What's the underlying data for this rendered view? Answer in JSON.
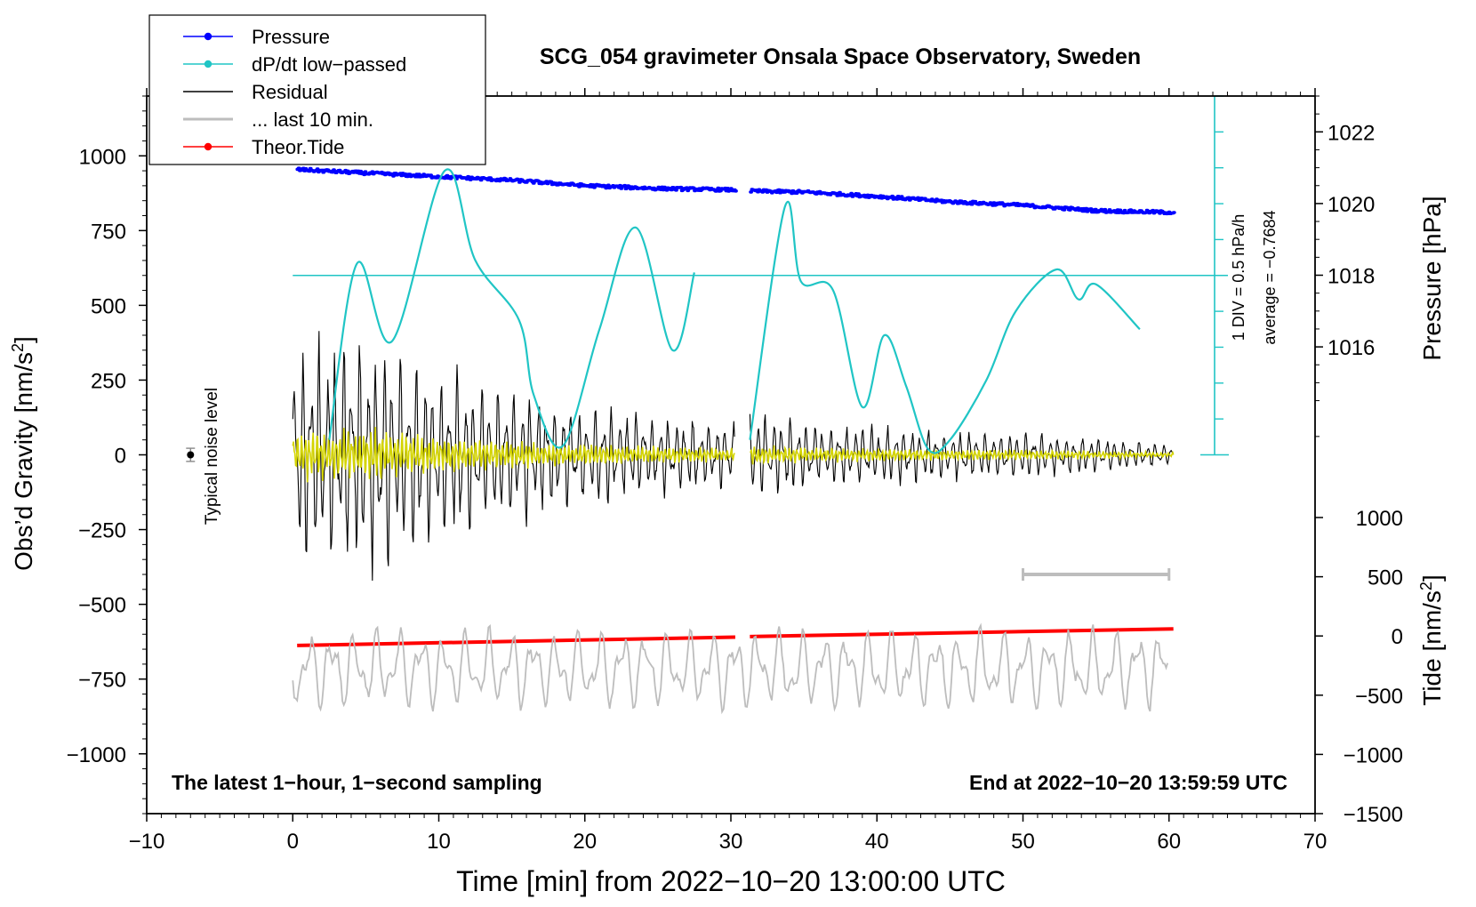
{
  "chart_data": {
    "type": "line",
    "title": "SCG_054 gravimeter Onsala Space Observatory, Sweden",
    "xlabel": "Time [min] from 2022−10−20 13:00:00 UTC",
    "xlim": [
      -10,
      70
    ],
    "x_ticks": [
      "−10",
      "0",
      "10",
      "20",
      "30",
      "40",
      "50",
      "60",
      "70"
    ],
    "y_left": {
      "label": "Obs’d Gravity [nm/s",
      "label_sup": "2",
      "label_end": "]",
      "range": [
        -1200,
        1200
      ],
      "ticks": [
        1000,
        750,
        500,
        250,
        0,
        -250,
        -500,
        -750,
        -1000
      ],
      "tick_labels": [
        "1000",
        "750",
        "500",
        "250",
        "0",
        "−250",
        "−500",
        "−750",
        "−1000"
      ]
    },
    "y_right_pressure": {
      "label": "Pressure [hPa]",
      "range": [
        1013.0,
        1023.0
      ],
      "ticks": [
        1022,
        1020,
        1018,
        1016
      ],
      "tick_labels": [
        "1022",
        "1020",
        "1018",
        "1016"
      ]
    },
    "y_right_tide": {
      "label": "Tide [nm/s",
      "label_sup": "2",
      "label_end": "]",
      "range": [
        -1500,
        1000
      ],
      "ticks": [
        1000,
        500,
        0,
        -500,
        -1000,
        -1500
      ],
      "tick_labels": [
        "1000",
        "500",
        "0",
        "−500",
        "−1000",
        "−1500"
      ]
    },
    "legend": {
      "position": "top-left",
      "entries": [
        {
          "label": "Pressure",
          "color": "#0000ff",
          "marker": true
        },
        {
          "label": "dP/dt low−passed",
          "color": "#20c5c5",
          "marker": true
        },
        {
          "label": "Residual",
          "color": "#000000",
          "marker": false
        },
        {
          "label": "... last 10 min.",
          "color": "#bdbdbd",
          "marker": false
        },
        {
          "label": "Theor.Tide",
          "color": "#ff0000",
          "marker": true
        }
      ]
    },
    "colors": {
      "pressure": "#0000ff",
      "dpdt": "#20c5c5",
      "residual": "#000000",
      "residual_smooth": "#d4d400",
      "last10": "#bdbdbd",
      "tide": "#ff0000"
    },
    "gap_minutes": [
      30.3,
      31.3
    ],
    "series": [
      {
        "name": "Pressure",
        "unit": "hPa",
        "x": [
          0.3,
          5,
          10,
          15,
          20,
          25,
          30.3,
          31.3,
          35,
          40,
          45,
          50,
          55,
          60.3
        ],
        "values": [
          1020.95,
          1020.85,
          1020.75,
          1020.65,
          1020.5,
          1020.42,
          1020.38,
          1020.35,
          1020.32,
          1020.2,
          1020.05,
          1019.95,
          1019.8,
          1019.75
        ]
      },
      {
        "name": "dP/dt low-passed",
        "unit": "DIV (1 DIV = 0.5 hPa/h), baseline 0 nm/s2, DIV = 100 nm/s2",
        "x": [
          2.5,
          4.4,
          6.8,
          10.4,
          12.5,
          15.5,
          16.5,
          18.5,
          21,
          23.5,
          26,
          27.5,
          31.3,
          33.7,
          34.8,
          37,
          39,
          40.5,
          42,
          43.5,
          45,
          47.5,
          49.5,
          52.3,
          53.8,
          55,
          58
        ],
        "values": [
          0.5,
          6.4,
          3.8,
          9.5,
          6.5,
          4.5,
          2,
          0.3,
          4.2,
          7.6,
          3.5,
          6.1,
          0.5,
          8.3,
          5.8,
          5.5,
          1.6,
          4,
          2.3,
          0.2,
          0.5,
          2.5,
          4.8,
          6.2,
          5.2,
          5.7,
          4.2
        ]
      },
      {
        "name": "Residual",
        "unit": "nm/s2",
        "envelope_x": [
          0,
          5,
          10,
          15,
          20,
          25,
          30.3,
          31.3,
          35,
          40,
          45,
          50,
          55,
          60.3
        ],
        "envelope_amplitude": [
          420,
          480,
          320,
          260,
          200,
          160,
          120,
          180,
          130,
          120,
          100,
          90,
          70,
          40
        ]
      },
      {
        "name": "Theor.Tide",
        "unit": "nm/s2",
        "x": [
          0.3,
          30.3,
          31.3,
          60.3
        ],
        "values": [
          -80,
          -10,
          -5,
          60
        ]
      }
    ],
    "noise_marker": {
      "x": -7,
      "y": 0,
      "label": "Typical noise level"
    },
    "last_10_min_bar": {
      "x_start": 50,
      "x_end": 60
    },
    "dpdt_reference_line": 600,
    "annotations": {
      "dpdt_scale": "1 DIV = 0.5 hPa/h",
      "dpdt_average": "average = −0.7684",
      "bottom_left": "The latest 1−hour, 1−second sampling",
      "bottom_right": "End at 2022−10−20 13:59:59 UTC"
    }
  }
}
